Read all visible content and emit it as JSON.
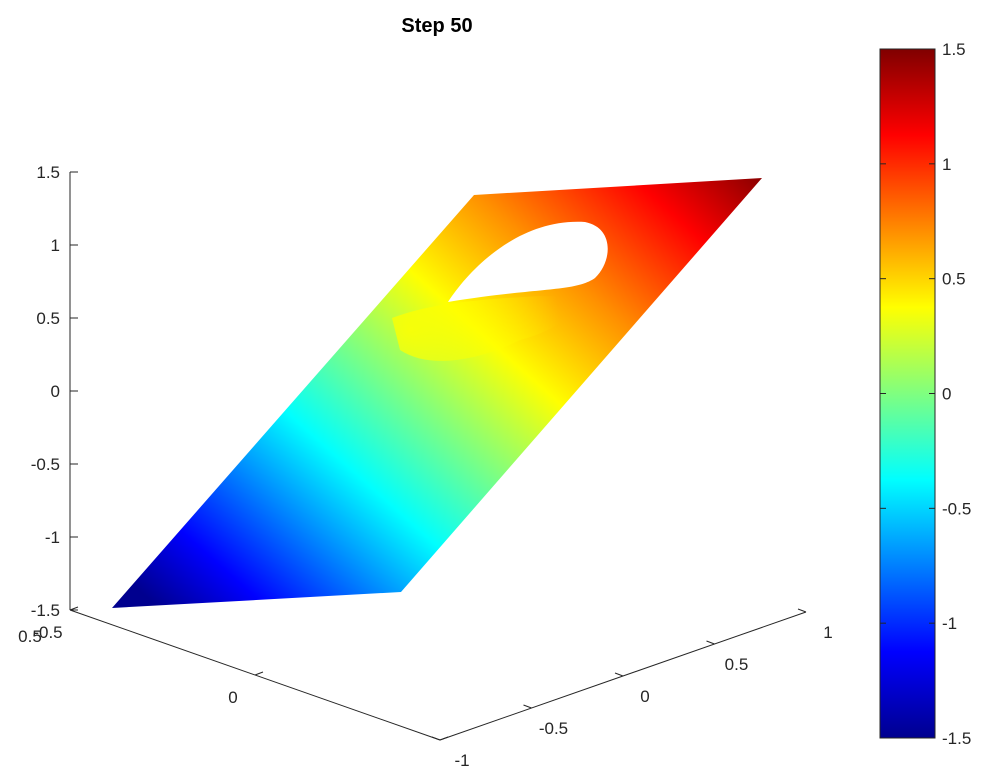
{
  "chart_data": {
    "type": "surface",
    "title": "Step 50",
    "colormap": "jet",
    "surface_description_z_range": [
      -1.5,
      1.5
    ],
    "axes": {
      "x": {
        "ticks": [
          -1,
          -0.5,
          0,
          0.5,
          1
        ],
        "labels": [
          "-1",
          "-0.5",
          "0",
          "0.5",
          "1"
        ],
        "range": [
          -1,
          1
        ]
      },
      "y": {
        "ticks": [
          -0.5,
          0,
          0.5
        ],
        "labels": [
          "-0.5",
          "0",
          "0.5"
        ],
        "range": [
          -0.5,
          0.5
        ]
      },
      "z": {
        "ticks": [
          -1.5,
          -1,
          -0.5,
          0,
          0.5,
          1,
          1.5
        ],
        "labels": [
          "-1.5",
          "-1",
          "-0.5",
          "0",
          "0.5",
          "1",
          "1.5"
        ],
        "range": [
          -1.5,
          1.5
        ]
      }
    },
    "surface": {
      "x": [
        -1,
        1
      ],
      "y": [
        -0.5,
        0.5
      ],
      "z_formula": "z = 1.5 * x (plane tilted along x, with a hole near x=0.35, y=0.25)",
      "z_range": [
        -1.5,
        1.5
      ],
      "hole": {
        "center_x": 0.35,
        "center_y": 0.25
      }
    },
    "colorbar": {
      "range": [
        -1.5,
        1.5
      ],
      "ticks": [
        -1.5,
        -1,
        -0.5,
        0,
        0.5,
        1,
        1.5
      ],
      "labels": [
        "-1.5",
        "-1",
        "-0.5",
        "0",
        "0.5",
        "1",
        "1.5"
      ]
    },
    "grid": false
  }
}
